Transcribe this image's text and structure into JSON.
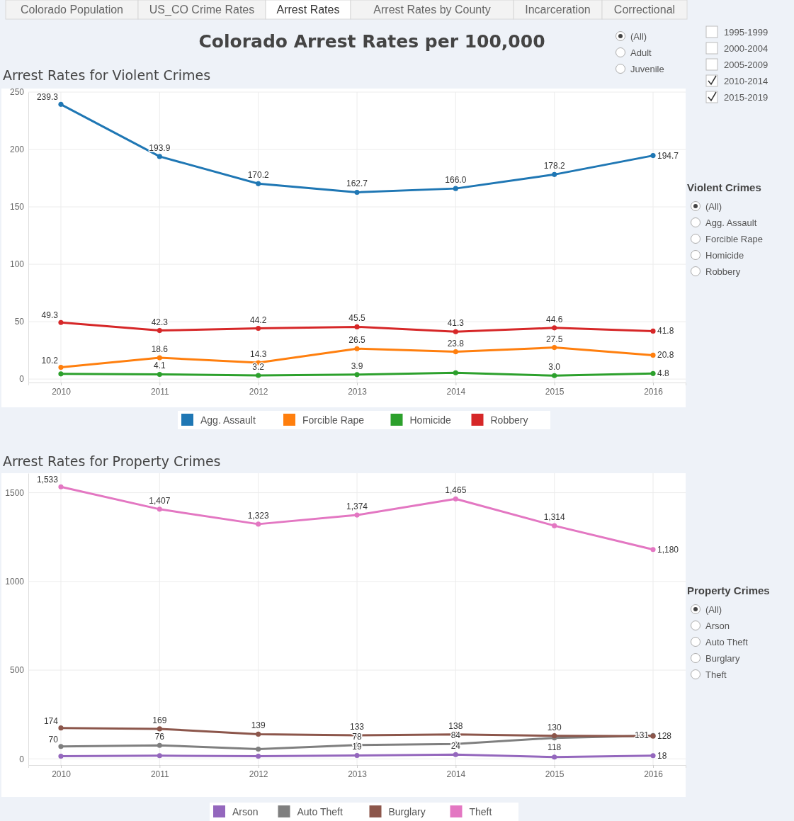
{
  "chart_data": [
    {
      "type": "other",
      "title": "Colorado Arrest Rates per 100,000",
      "annotations": [
        "Colorado Population",
        "US_CO Crime Rates",
        "Arrest Rates",
        "Arrest Rates by County",
        "Incarceration",
        "Correctional",
        "(All)",
        "Adult",
        "Juvenile",
        "1995-1999",
        "2000-2004",
        "2005-2009",
        "2010-2014",
        "2015-2019"
      ]
    },
    {
      "type": "line",
      "title": "Arrest Rates for Violent Crimes",
      "categories": [
        "2010",
        "2011",
        "2012",
        "2013",
        "2014",
        "2015",
        "2016"
      ],
      "series": [
        {
          "name": "Agg. Assault",
          "color": "#1f77b4",
          "values": [
            239.3,
            193.9,
            170.2,
            162.7,
            166.0,
            178.2,
            194.7
          ],
          "value_labels": [
            "239.3",
            "193.9",
            "170.2",
            "162.7",
            "166.0",
            "178.2",
            "194.7"
          ]
        },
        {
          "name": "Forcible Rape",
          "color": "#ff7f0e",
          "values": [
            10.2,
            18.6,
            14.3,
            26.5,
            23.8,
            27.5,
            20.8
          ],
          "value_labels": [
            "10.2",
            "18.6",
            "14.3",
            "26.5",
            "23.8",
            "27.5",
            "20.8"
          ]
        },
        {
          "name": "Homicide",
          "color": "#2ca02c",
          "values": [
            4.5,
            4.1,
            3.2,
            3.9,
            5.5,
            3.0,
            4.8
          ],
          "value_labels": [
            null,
            "4.1",
            "3.2",
            "3.9",
            null,
            "3.0",
            "4.8"
          ]
        },
        {
          "name": "Robbery",
          "color": "#d62728",
          "values": [
            49.3,
            42.3,
            44.2,
            45.5,
            41.3,
            44.6,
            41.8
          ],
          "value_labels": [
            "49.3",
            "42.3",
            "44.2",
            "45.5",
            "41.3",
            "44.6",
            "41.8"
          ]
        }
      ],
      "ylim": [
        -3,
        250
      ],
      "yticks": [
        0,
        50,
        100,
        150,
        200,
        250
      ],
      "grid": true,
      "legend": "bottom",
      "marker": "circle",
      "line_style": "solid",
      "annotations": [
        "Violent Crimes",
        "(All)",
        "Agg. Assault",
        "Forcible Rape",
        "Homicide",
        "Robbery"
      ]
    },
    {
      "type": "line",
      "title": "Arrest Rates for Property Crimes",
      "categories": [
        "2010",
        "2011",
        "2012",
        "2013",
        "2014",
        "2015",
        "2016"
      ],
      "series": [
        {
          "name": "Arson",
          "color": "#9467bd",
          "values": [
            15,
            18,
            15,
            19,
            24,
            10,
            18
          ],
          "value_labels": [
            null,
            null,
            null,
            "19",
            "24",
            null,
            "18"
          ]
        },
        {
          "name": "Auto Theft",
          "color": "#7f7f7f",
          "values": [
            70,
            76,
            55,
            78,
            84,
            118,
            131
          ],
          "value_labels": [
            "70",
            "76",
            null,
            "78",
            "84",
            "118",
            "131"
          ]
        },
        {
          "name": "Burglary",
          "color": "#8c564b",
          "values": [
            174,
            169,
            139,
            133,
            138,
            130,
            128
          ],
          "value_labels": [
            "174",
            "169",
            "139",
            "133",
            "138",
            "130",
            "128"
          ]
        },
        {
          "name": "Theft",
          "color": "#e377c2",
          "values": [
            1533,
            1407,
            1323,
            1374,
            1465,
            1314,
            1180
          ],
          "value_labels": [
            "1,533",
            "1,407",
            "1,323",
            "1,374",
            "1,465",
            "1,314",
            "1,180"
          ]
        }
      ],
      "ylim": [
        -35,
        1610
      ],
      "yticks": [
        0,
        500,
        1000,
        1500
      ],
      "grid": true,
      "legend": "bottom",
      "marker": "circle",
      "line_style": "solid",
      "annotations": [
        "Property Crimes",
        "(All)",
        "Arson",
        "Auto Theft",
        "Burglary",
        "Theft"
      ]
    }
  ]
}
